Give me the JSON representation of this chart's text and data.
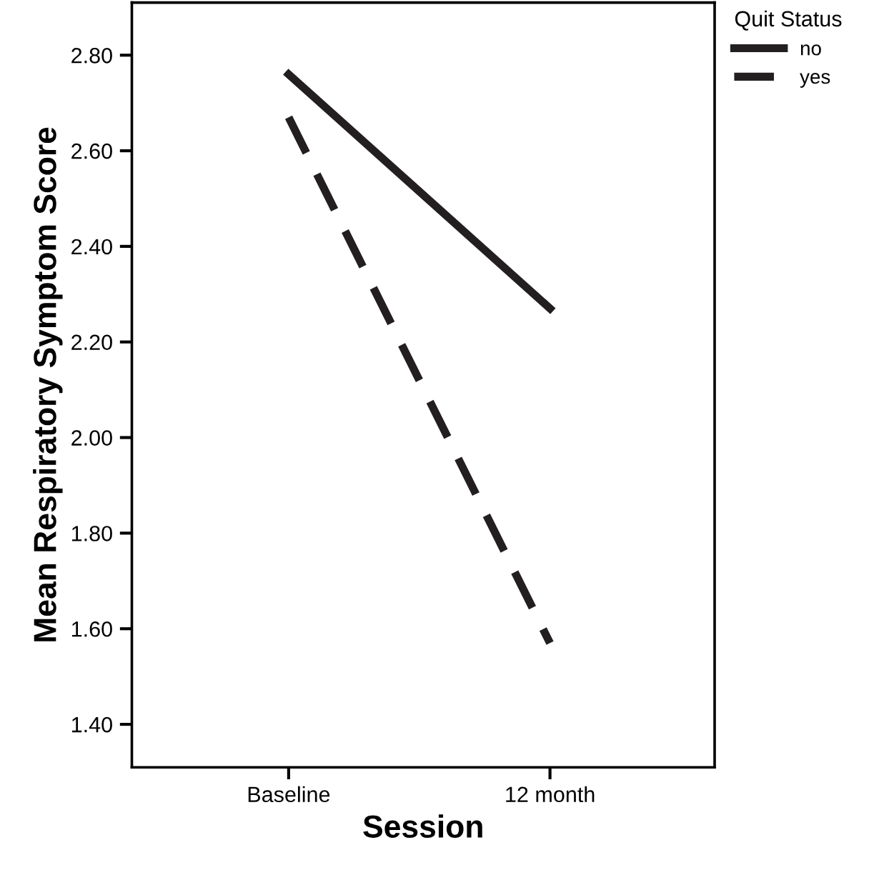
{
  "chart_data": {
    "type": "line",
    "xlabel": "Session",
    "ylabel": "Mean Respiratory Symptom Score",
    "legend_title": "Quit Status",
    "legend": "top right",
    "grid": false,
    "marker": "none",
    "categories": [
      "Baseline",
      "12 month"
    ],
    "series": [
      {
        "name": "no",
        "color": "#231f20",
        "values": [
          2.76,
          2.27
        ],
        "line_style": "solid"
      },
      {
        "name": "yes",
        "color": "#231f20",
        "values": [
          2.67,
          1.57
        ],
        "line_style": "dashed"
      }
    ],
    "ylim": [
      1.31,
      2.91
    ],
    "yticks": [
      {
        "value": 1.4,
        "label": "1.40"
      },
      {
        "value": 1.6,
        "label": "1.60"
      },
      {
        "value": 1.8,
        "label": "1.80"
      },
      {
        "value": 2.0,
        "label": "2.00"
      },
      {
        "value": 2.2,
        "label": "2.20"
      },
      {
        "value": 2.4,
        "label": "2.40"
      },
      {
        "value": 2.6,
        "label": "2.60"
      },
      {
        "value": 2.8,
        "label": "2.80"
      }
    ]
  }
}
